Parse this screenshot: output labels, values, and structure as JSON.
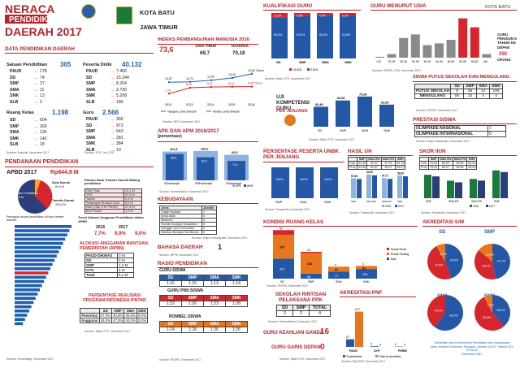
{
  "header": {
    "neraca": "NERACA",
    "pendidikan": "PENDIDIKAN",
    "daerah": "DAERAH 2017",
    "kota": "KOTA BATU",
    "prov": "JAWA TIMUR"
  },
  "dpd": {
    "title": "DATA PENDIDIKAN DAERAH",
    "satuan": {
      "label": "Satuan Pendidikan",
      "total": "305",
      "rows": [
        [
          "PAUD",
          "178"
        ],
        [
          "SD",
          "74"
        ],
        [
          "SMP",
          "27"
        ],
        [
          "SMA",
          "11"
        ],
        [
          "SMK",
          "13"
        ],
        [
          "SLB",
          "2"
        ]
      ]
    },
    "pd": {
      "label": "Peserta Didik",
      "total": "40.132",
      "rows": [
        [
          "PAUD",
          "7.466"
        ],
        [
          "SD",
          "15.344"
        ],
        [
          "SMP",
          "8.204"
        ],
        [
          "SMA",
          "3.730"
        ],
        [
          "SMK",
          "5.208"
        ],
        [
          "SLB",
          "180"
        ]
      ]
    },
    "ruang": {
      "label": "Ruang Kelas",
      "total": "1.198",
      "rows": [
        [
          "SD",
          "604"
        ],
        [
          "SMP",
          "300"
        ],
        [
          "SMA",
          "134"
        ],
        [
          "SMK",
          "142"
        ],
        [
          "SLB",
          "18"
        ]
      ]
    },
    "guru": {
      "label": "Guru",
      "total": "2.566",
      "rows": [
        [
          "PAUD",
          "366"
        ],
        [
          "SD",
          "973"
        ],
        [
          "SMP",
          "543"
        ],
        [
          "SMA",
          "281"
        ],
        [
          "SMK",
          "384"
        ],
        [
          "SLB",
          "19"
        ]
      ]
    },
    "src1": "Sumber: Dapodik, November 2017",
    "src2": "Sumber: GTK, Juni 2017"
  },
  "pendanaan": {
    "title": "PENDANAAN PENDIDIKAN",
    "apbd_label": "APBD 2017",
    "apbd_value": "Rp844,8 M",
    "pie": {
      "a_name": "Dana Daerah",
      "a_val": "64,4 M",
      "b_name": "Transfer Daerah",
      "b_val": "335,8 M",
      "c_name": "Non Urusan Pendidikan",
      "c_val": "474,5 M"
    },
    "rincian_title": "Rincian Dana Transfer Daerah Bidang pendidikan",
    "rincian": [
      [
        "DAK Fisik",
        "13,1 M"
      ],
      [
        "TPG",
        "37,5 M"
      ],
      [
        "Tamsil",
        "0,9 M"
      ],
      [
        "Tunjangan Khusus Guru",
        "0,0 M"
      ],
      [
        "DAU (Gaji GTK PNSD)",
        "47,4 M"
      ],
      [
        "BOP PAUD",
        "1,9 M"
      ]
    ],
    "peringkat": "Peringkat urusan pendidikan (di luar transfer daerah)",
    "tren_title": "Trend Alokasi Anggaran Pendidikan dalam APBD",
    "tren_years": [
      "2016",
      "2017"
    ],
    "tren_vals": [
      "7,7%",
      "9,9%",
      "9,0%"
    ],
    "alokasi_title": "ALOKASI ANGGARAN BANTUAN PEMERINTAH (APBN)",
    "alokasi": [
      [
        "PAUD-DIKMAS",
        "0 M"
      ],
      [
        "SD",
        "0 M"
      ],
      [
        "SMP",
        "1,3 M"
      ],
      [
        "GTK",
        "4 M"
      ],
      [
        "Total",
        "5,3 M"
      ]
    ],
    "realisasi_title": "PERSENTASE REALISASI PROGRAM INDONESIA PINTAR",
    "realisasi_head": [
      "SD",
      "SMP",
      "SMA",
      "SMK"
    ],
    "realisasi": [
      [
        "Penerima",
        "67,0%",
        "40,8%",
        "36,9%",
        "0,0%"
      ],
      [
        "Anggaran",
        "49,3%",
        "47,8%",
        "40,0%",
        "0,0%"
      ]
    ],
    "src": "Sumber: Kemendagri, November 2017",
    "src2": "Sumber: Ditjen GTK, November 2017"
  },
  "ipm": {
    "title": "INDEKS PEMBANGUNAN MANUSIA 2016",
    "kota_val": "73,6",
    "jatim_label": "JAWA TIMUR",
    "jatim_val": "69,7",
    "nas_label": "NASIONAL",
    "nas_val": "70,18",
    "years": [
      "2012",
      "2013",
      "2014",
      "2015",
      "2016"
    ],
    "top": [
      "12,67",
      "12,71",
      "12,90",
      "13,16",
      "13,62 Tahun"
    ],
    "bot": [
      "7,76",
      "8,34",
      "8,41",
      "8,44",
      "8,45 Tahun"
    ],
    "leg1": "Harapan Lama Sekolah",
    "leg2": "Rerata Lama Sekolah",
    "src": "Sumber: BPS, November 2017"
  },
  "apk": {
    "title": "APK DAN APM 2016/2017",
    "sub": "(persentase)",
    "labels": [
      "SD/sederajat",
      "SMP/sederajat",
      "SM/sederajat"
    ],
    "apk": [
      "104,3",
      "106,2",
      "92,5"
    ],
    "apm": [
      "95,5",
      "83,4",
      "70,2"
    ],
    "leg_apk": "APK",
    "leg_apm": "APM",
    "src": "Sumber: Kemendikbud, November 2017"
  },
  "kebudayaan": {
    "title": "KEBUDAYAAN",
    "rows": [
      [
        "Jenis",
        "Jumlah"
      ],
      [
        "Cagar Budaya",
        "1"
      ],
      [
        "Desa Adat",
        "0"
      ],
      [
        "Museum",
        "0"
      ],
      [
        "Rumah Budaya Nusantara",
        "0"
      ],
      [
        "Sanggar dan Komunitas",
        "0"
      ],
      [
        "Warisan Budaya Tak Benda",
        "0"
      ]
    ],
    "src": "Sumber: Ditjen Kebudayaan, November 2017"
  },
  "bahasa": {
    "label": "BAHASA DAERAH",
    "value": "1",
    "src": "Sumber: BPPB, November 2017"
  },
  "rasio": {
    "title": "RASIO PENDIDIKAN",
    "gurusiswa": {
      "label": "GURU:SISWA",
      "head": [
        "SD",
        "SMP",
        "SMA",
        "SMK"
      ],
      "vals": [
        "1:16",
        "1:15",
        "1:13",
        "1:14"
      ]
    },
    "gurupns": {
      "label": "GURU PNS:SISWA",
      "vals": [
        "1:22",
        "1:26",
        "1:23",
        "1:28"
      ]
    },
    "rombel": {
      "label": "ROMBEL:SISWA",
      "vals": [
        "1:24",
        "1:28",
        "1:26",
        "1:26"
      ]
    },
    "src": "Sumber: PDSPK, November 2017"
  },
  "kualifikasi": {
    "title": "KUALIFIKASI GURU",
    "cats": [
      "SD",
      "SMP",
      "SMA",
      "SMK"
    ],
    "top": [
      "10,5%",
      "6,5%",
      "4,8%",
      "6,2%"
    ],
    "bot": [
      "89,5%",
      "93,5%",
      "95,2%",
      "93,8%"
    ],
    "leg1": "<S1/D4",
    "leg2": "S1/D4",
    "src": "Sumber: Ditjen GTK, November 2017"
  },
  "usia": {
    "title": "GURU MENURUT USIA",
    "kota": "KOTA BATU",
    "cats": [
      "<20",
      "20-25",
      "25-30",
      "30-35",
      "35-40",
      "40-45",
      "45-50",
      "50-55",
      "55-60",
      ">60"
    ],
    "vals": [
      0.5,
      2,
      11,
      13,
      7,
      8,
      10,
      22,
      17,
      2
    ],
    "note1": "GURU PENSIUN 5 TAHUN KE DEPAN",
    "note_val": "250",
    "note2": "ORANG",
    "src": "Sumber: PDSPK, GTK, November 2017"
  },
  "uji": {
    "title": "UJI KOMPETENSI GURU",
    "sub": "PER JENJANG",
    "vals": [
      "60,49",
      "66,96",
      "70,99",
      "62,66"
    ],
    "cats": [
      "SD",
      "SMP",
      "SMA",
      "SMK"
    ],
    "src": "Sumber: Ditjen GTK, November 2017"
  },
  "putus": {
    "title": "SISWA PUTUS SEKOLAH DAN MENGULANG",
    "head": [
      "SD",
      "SMP",
      "SMA",
      "SMK"
    ],
    "rows": [
      [
        "PUTUS SEKOLAH",
        "5",
        "38",
        "14",
        "105"
      ],
      [
        "MENGULANG",
        "50",
        "13",
        "4",
        "4"
      ]
    ],
    "src": "Sumber: PDSPK, November 2017"
  },
  "prestasi": {
    "title": "PRESTASI SISWA",
    "rows": [
      [
        "OLIMPIADE NASIONAL",
        "1"
      ],
      [
        "OLIMPIADE INTERNASIONAL",
        "0"
      ]
    ],
    "src": "Sumber: Ditjen Dikdasmen, November 2017"
  },
  "kab": {
    "head": [
      "SD",
      "SMP",
      "SMA",
      "SMK"
    ],
    "row1": [
      "Kab.",
      "83,33",
      "86,76",
      "81,44",
      "86,34"
    ],
    "row2": [
      "Prov.",
      "58,90",
      "63,07",
      "67,31",
      "60,33"
    ]
  },
  "unbk": {
    "title": "PERSENTASE PESERTA UNBK PER JENJANG",
    "cats": [
      "SMP",
      "SMA",
      "SMK"
    ],
    "vals": [
      "100%",
      "100%",
      "100%"
    ],
    "src": "Sumber: Puspendik, November 2017"
  },
  "hasilun": {
    "title": "HASIL UN",
    "head": [
      "SMP",
      "SMA IPA",
      "SMA IPS",
      "SMK"
    ],
    "kab": [
      "54,35",
      "52,07",
      "47,93",
      "53,75"
    ],
    "prov": [
      "54,36",
      "52,87",
      "46,07",
      "55,07"
    ],
    "bars": [
      "57,66",
      "60,90",
      "57,71",
      "59,99"
    ],
    "cats": [
      "SMP",
      "SMA IPA",
      "SMA IPS",
      "SMK"
    ],
    "leg1": "2016",
    "leg2": "2017",
    "src": "Sumber: Puspendik, November 2017"
  },
  "iiun": {
    "title": "SKOR IIUN",
    "head": [
      "SMP",
      "SMA IPA",
      "SMA IPS",
      "SMK"
    ],
    "kab": [
      "76,05",
      "66,95",
      "69,65",
      "82,81"
    ],
    "prov": [
      "78,99",
      "66,97",
      "69,84",
      "69,94"
    ],
    "cats": [
      "SMP",
      "SMA IPA",
      "SMA IPS",
      "SMK"
    ],
    "leg1": "2016",
    "leg2": "2017",
    "src": "Sumber: Puspendik, November 2017"
  },
  "kondisi": {
    "title": "KONDISI RUANG KELAS",
    "cats": [
      "SD",
      "SMP",
      "SMA",
      "SMK"
    ],
    "baik": [
      "224",
      "56",
      "77",
      "108"
    ],
    "sedang": [
      "267",
      "231",
      "57",
      "31"
    ],
    "berat": [
      "52",
      "13",
      "0",
      "3"
    ],
    "leg": [
      "Rusak Berat",
      "Rusak Sedang",
      "Baik"
    ],
    "src": "Sumber: PDSPK, November 2017"
  },
  "rintisan": {
    "title": "SEKOLAH RINTISAN PELAKSANA PPK",
    "head": [
      "SD",
      "SMP",
      "TOTAL"
    ],
    "vals": [
      "2",
      "2",
      "4"
    ],
    "src": "Sumber: Kemendikbud, November 2017"
  },
  "keahlian": {
    "label": "GURU KEAHLIAN GANDA",
    "value": "16"
  },
  "garis": {
    "label": "GURU GARIS DEPAN",
    "value": "0",
    "src": "Sumber: Ditjen GTK, November 2017"
  },
  "pnf": {
    "title": "AKREDITASI PNF",
    "cats": [
      "PAUD",
      "LKP",
      "PKBM"
    ],
    "terakreditasi": [
      "47",
      "4",
      "2"
    ],
    "tidak": [
      "217",
      "0",
      "0"
    ],
    "leg1": "Terakreditasi",
    "leg2": "Tidak terakreditasi",
    "src": "Sumber: BAN PNF, November 2017"
  },
  "akreditasi": {
    "title": "AKREDITASI S/M",
    "sd": {
      "label": "SD",
      "A": "44,3%",
      "B": "47,5%",
      "C": "8,2%"
    },
    "smp": {
      "label": "SMP",
      "A": "47,1%",
      "B": "39,0%",
      "C": "13,9%"
    },
    "sma": {
      "label": "SMA",
      "A": "60,0%",
      "B": "40,0%"
    },
    "smk": {
      "label": "SMK",
      "A": "38,5%",
      "B": "53,8%",
      "C": "7,7%"
    }
  },
  "footer": "Diterbitkan oleh Kementerian Pendidikan dan Kebudayaan\nJalan Jenderal Sudirman, Senayan, Jakarta 10270, Telepon 021-5711144\nDesember 2017",
  "colors": {
    "accent": "#b8232b",
    "blue": "#1f5fb0",
    "red": "#d6262d",
    "orange": "#e8761e",
    "gray": "#8a8a8a"
  }
}
